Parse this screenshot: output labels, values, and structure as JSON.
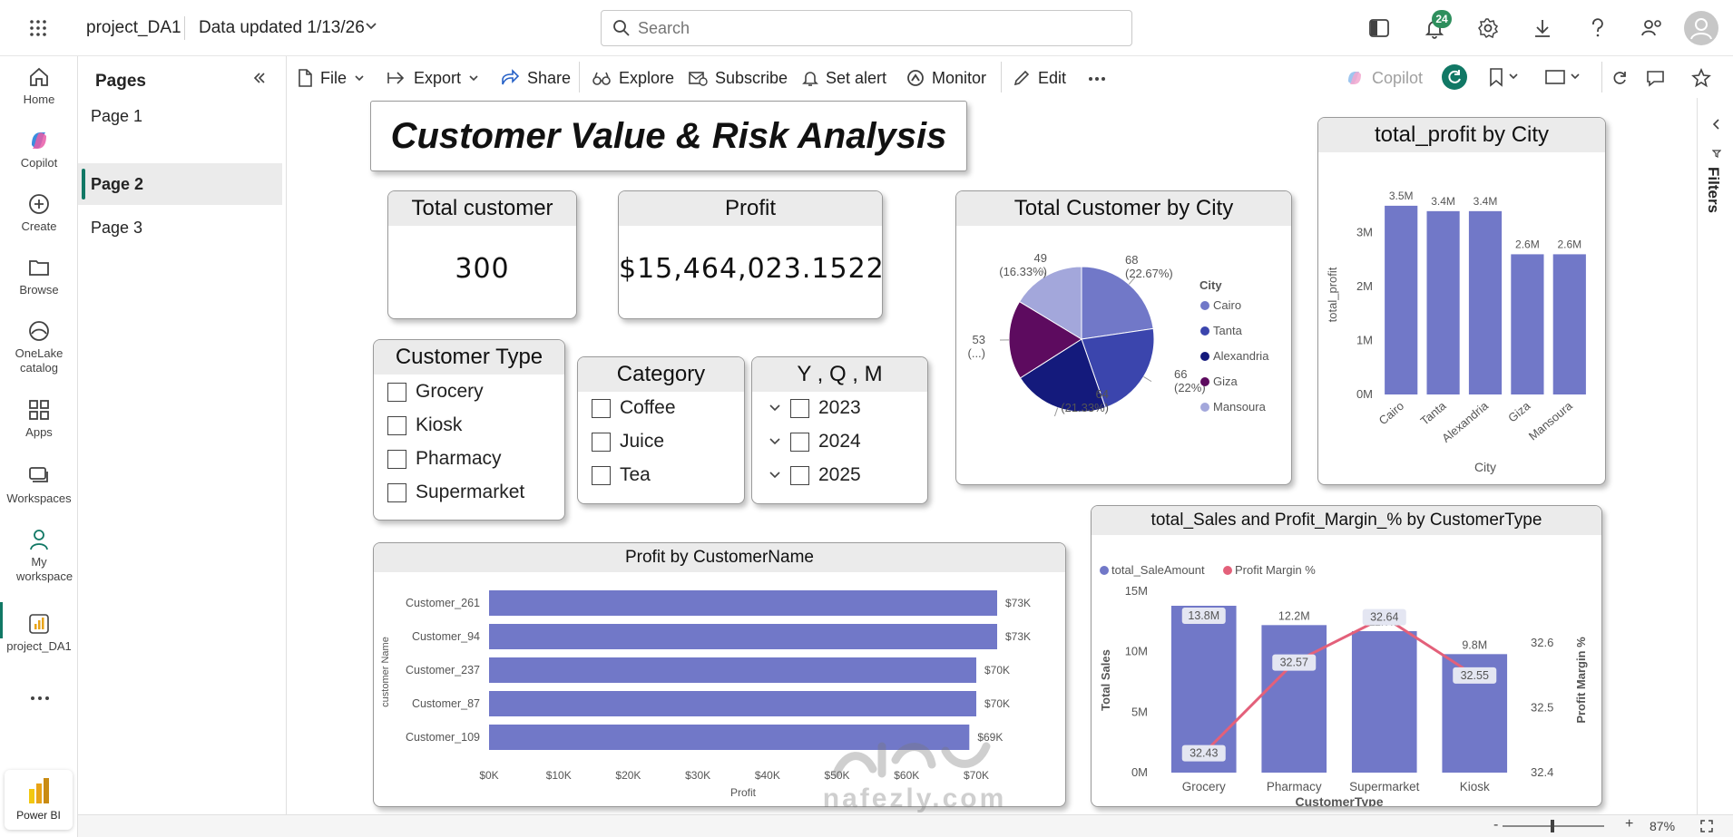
{
  "topbar": {
    "app_name": "project_DA1",
    "data_updated": "Data updated 1/13/26",
    "search_placeholder": "Search",
    "notifications_count": "24"
  },
  "leftnav": {
    "items": [
      {
        "label": "Home"
      },
      {
        "label": "Copilot"
      },
      {
        "label": "Create"
      },
      {
        "label": "Browse"
      },
      {
        "label": "OneLake catalog"
      },
      {
        "label": "Apps"
      },
      {
        "label": "Workspaces"
      },
      {
        "label": "My workspace"
      },
      {
        "label": "project_DA1"
      }
    ],
    "powerbi_label": "Power BI"
  },
  "pages_panel": {
    "title": "Pages",
    "pages": [
      "Page 1",
      "Page 2",
      "Page 3"
    ],
    "active": "Page 2"
  },
  "toolbar": {
    "file": "File",
    "export": "Export",
    "share": "Share",
    "explore": "Explore",
    "subscribe": "Subscribe",
    "set_alert": "Set alert",
    "monitor": "Monitor",
    "edit": "Edit",
    "copilot": "Copilot"
  },
  "filters_label": "Filters",
  "report": {
    "title": "Customer Value & Risk Analysis",
    "kpi_total_customer": {
      "label": "Total customer",
      "value": "300"
    },
    "kpi_profit": {
      "label": "Profit",
      "value": "$15,464,023.1522"
    },
    "slicer_customer_type": {
      "title": "Customer Type",
      "options": [
        "Grocery",
        "Kiosk",
        "Pharmacy",
        "Supermarket"
      ]
    },
    "slicer_category": {
      "title": "Category",
      "options": [
        "Coffee",
        "Juice",
        "Tea"
      ]
    },
    "slicer_yqm": {
      "title": "Y , Q , M",
      "options": [
        "2023",
        "2024",
        "2025"
      ]
    }
  },
  "status": {
    "zoom": "87%",
    "watermark_brand": "nafezly.com"
  },
  "colors": {
    "bar": "#7178c8",
    "line": "#e3607a",
    "accent_green": "#117865",
    "pie": [
      "#7178c8",
      "#3b45ad",
      "#141a7c",
      "#5d0b5f",
      "#a3a7db"
    ]
  },
  "chart_data": [
    {
      "id": "pie",
      "type": "pie",
      "title": "Total Customer by City",
      "legend_title": "City",
      "legend_position": "right",
      "categories": [
        "Cairo",
        "Tanta",
        "Alexandria",
        "Giza",
        "Mansoura"
      ],
      "values": [
        68,
        66,
        64,
        53,
        49
      ],
      "data_labels": [
        "68\n(22.67%)",
        "66\n(22%)",
        "64\n(21.33%)",
        "53\n(...)",
        "49\n(16.33%)"
      ]
    },
    {
      "id": "profit_by_city",
      "type": "bar",
      "title": "total_profit by City",
      "xlabel": "City",
      "ylabel": "total_profit",
      "categories": [
        "Cairo",
        "Tanta",
        "Alexandria",
        "Giza",
        "Mansoura"
      ],
      "values": [
        3.5,
        3.4,
        3.4,
        2.6,
        2.6
      ],
      "value_unit": "M",
      "data_labels": [
        "3.5M",
        "3.4M",
        "3.4M",
        "2.6M",
        "2.6M"
      ],
      "yticks": [
        "0M",
        "1M",
        "2M",
        "3M"
      ],
      "ylim": [
        0,
        3.7
      ],
      "grid": false
    },
    {
      "id": "profit_by_customer",
      "type": "bar",
      "orientation": "horizontal",
      "title": "Profit by CustomerName",
      "xlabel": "Profit",
      "ylabel": "customer Name",
      "categories": [
        "Customer_261",
        "Customer_94",
        "Customer_237",
        "Customer_87",
        "Customer_109"
      ],
      "values": [
        73,
        73,
        70,
        70,
        69
      ],
      "value_unit": "K",
      "data_labels": [
        "$73K",
        "$73K",
        "$70K",
        "$70K",
        "$69K"
      ],
      "xticks": [
        "$0K",
        "$10K",
        "$20K",
        "$30K",
        "$40K",
        "$50K",
        "$60K",
        "$70K"
      ],
      "xlim": [
        0,
        73
      ],
      "grid": false
    },
    {
      "id": "sales_margin",
      "type": "bar",
      "combo": "line",
      "title": "total_Sales and Profit_Margin_% by CustomerType",
      "xlabel": "CustomerType",
      "ylabel": "Total Sales",
      "y2label": "Profit Margin %",
      "legend_position": "top-left",
      "categories": [
        "Grocery",
        "Pharmacy",
        "Supermarket",
        "Kiosk"
      ],
      "series": [
        {
          "name": "total_SaleAmount",
          "type": "bar",
          "values": [
            13.8,
            12.2,
            11.7,
            9.8
          ],
          "labels": [
            "13.8M",
            "12.2M",
            "11.7M",
            "9.8M"
          ]
        },
        {
          "name": "Profit Margin %",
          "type": "line",
          "values": [
            32.43,
            32.57,
            32.64,
            32.55
          ],
          "labels": [
            "32.43",
            "32.57",
            "32.64",
            "32.55"
          ]
        }
      ],
      "yticks": [
        "0M",
        "5M",
        "10M",
        "15M"
      ],
      "ylim": [
        0,
        15
      ],
      "y2ticks": [
        "32.4",
        "32.5",
        "32.6"
      ],
      "y2lim": [
        32.4,
        32.68
      ],
      "grid": false
    }
  ]
}
